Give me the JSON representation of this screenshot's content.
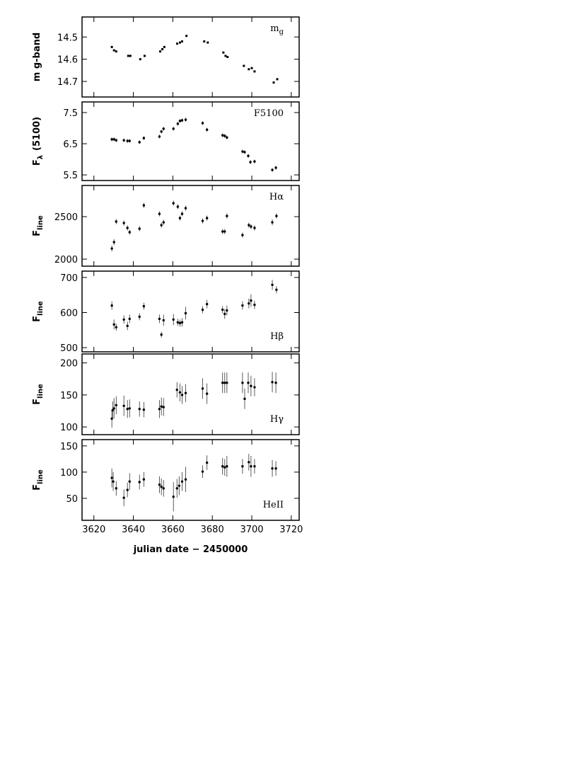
{
  "chart_data": [
    {
      "type": "scatter",
      "marker": "square",
      "ylabel": "m  g-band",
      "label": "m",
      "label_sub": "g",
      "label_loc": "upper right",
      "xlim": [
        3614,
        3724
      ],
      "xticks": [
        3620,
        3640,
        3660,
        3680,
        3700,
        3720
      ],
      "ylim": [
        14.77,
        14.41
      ],
      "yticks": [
        14.5,
        14.6,
        14.7
      ],
      "x": [
        3629.1,
        3630.2,
        3631.3,
        3637.4,
        3638.5,
        3643.5,
        3645.7,
        3653.6,
        3654.7,
        3655.7,
        3662.2,
        3663.6,
        3664.7,
        3666.9,
        3675.9,
        3677.7,
        3685.6,
        3686.7,
        3687.7,
        3696.0,
        3698.5,
        3700.0,
        3701.4,
        3711.1,
        3712.9
      ],
      "values": [
        14.545,
        14.56,
        14.565,
        14.585,
        14.585,
        14.6,
        14.585,
        14.565,
        14.555,
        14.545,
        14.53,
        14.525,
        14.52,
        14.495,
        14.52,
        14.525,
        14.57,
        14.585,
        14.59,
        14.63,
        14.645,
        14.64,
        14.655,
        14.705,
        14.69
      ]
    },
    {
      "type": "errorbar",
      "ylabel": "F",
      "ylabel_sub": "λ",
      "ylabel_rest": "(5100)",
      "label": "F5100",
      "label_loc": "upper right",
      "xlim": [
        3614,
        3724
      ],
      "xticks": [
        3620,
        3640,
        3660,
        3680,
        3700,
        3720
      ],
      "ylim": [
        5.32,
        7.84
      ],
      "yticks": [
        5.5,
        6.5,
        7.5
      ],
      "x": [
        3629.1,
        3630.2,
        3631.3,
        3635.2,
        3637.0,
        3638.1,
        3643.1,
        3645.3,
        3653.2,
        3654.2,
        3655.3,
        3660.3,
        3662.5,
        3663.6,
        3664.7,
        3666.5,
        3675.1,
        3677.3,
        3685.2,
        3686.3,
        3687.4,
        3695.3,
        3696.4,
        3698.2,
        3699.3,
        3701.4,
        3710.4,
        3712.2
      ],
      "values": [
        6.64,
        6.64,
        6.61,
        6.61,
        6.59,
        6.59,
        6.55,
        6.68,
        6.73,
        6.89,
        6.98,
        6.98,
        7.14,
        7.23,
        7.25,
        7.27,
        7.16,
        6.95,
        6.77,
        6.75,
        6.7,
        6.25,
        6.23,
        6.11,
        5.91,
        5.93,
        5.66,
        5.73
      ],
      "error": [
        0.06,
        0.06,
        0.06,
        0.06,
        0.06,
        0.06,
        0.06,
        0.06,
        0.06,
        0.06,
        0.06,
        0.06,
        0.06,
        0.06,
        0.06,
        0.06,
        0.06,
        0.06,
        0.06,
        0.06,
        0.06,
        0.06,
        0.06,
        0.06,
        0.06,
        0.06,
        0.06,
        0.06
      ]
    },
    {
      "type": "errorbar",
      "ylabel": "F",
      "ylabel_sub": "line",
      "label": "Hα",
      "label_loc": "upper right",
      "xlim": [
        3614,
        3724
      ],
      "xticks": [
        3620,
        3640,
        3660,
        3680,
        3700,
        3720
      ],
      "ylim": [
        1917,
        2867
      ],
      "yticks": [
        2000,
        2500
      ],
      "x": [
        3629.1,
        3630.2,
        3631.3,
        3635.2,
        3637.0,
        3638.1,
        3643.1,
        3645.3,
        3653.2,
        3654.2,
        3655.3,
        3660.3,
        3662.5,
        3663.6,
        3664.7,
        3666.5,
        3675.1,
        3677.3,
        3685.2,
        3686.3,
        3687.4,
        3695.3,
        3698.5,
        3699.6,
        3701.4,
        3710.4,
        3712.5
      ],
      "values": [
        2125,
        2200,
        2442,
        2425,
        2367,
        2317,
        2358,
        2633,
        2533,
        2400,
        2433,
        2658,
        2617,
        2483,
        2533,
        2600,
        2450,
        2483,
        2325,
        2325,
        2508,
        2283,
        2400,
        2383,
        2367,
        2433,
        2508
      ],
      "error": [
        35,
        35,
        30,
        30,
        30,
        30,
        30,
        30,
        30,
        30,
        30,
        30,
        30,
        30,
        30,
        30,
        30,
        30,
        30,
        30,
        30,
        30,
        30,
        30,
        30,
        35,
        30
      ]
    },
    {
      "type": "errorbar",
      "ylabel": "F",
      "ylabel_sub": "line",
      "label": "Hβ",
      "label_loc": "lower right",
      "xlim": [
        3614,
        3724
      ],
      "xticks": [
        3620,
        3640,
        3660,
        3680,
        3700,
        3720
      ],
      "ylim": [
        488,
        718
      ],
      "yticks": [
        500,
        600,
        700
      ],
      "x": [
        3629.1,
        3630.2,
        3631.3,
        3635.2,
        3637.0,
        3638.1,
        3643.1,
        3645.3,
        3653.2,
        3654.2,
        3655.3,
        3660.3,
        3662.5,
        3663.6,
        3664.7,
        3666.5,
        3675.1,
        3677.3,
        3685.2,
        3686.3,
        3687.4,
        3695.3,
        3698.5,
        3699.6,
        3701.4,
        3710.4,
        3712.5
      ],
      "values": [
        620,
        566,
        558,
        580,
        562,
        582,
        588,
        618,
        582,
        537,
        578,
        580,
        572,
        570,
        572,
        598,
        608,
        624,
        608,
        596,
        606,
        620,
        626,
        634,
        622,
        679,
        665
      ],
      "error": [
        12,
        14,
        10,
        12,
        12,
        12,
        10,
        10,
        12,
        8,
        16,
        16,
        10,
        10,
        12,
        18,
        10,
        12,
        10,
        14,
        14,
        12,
        14,
        18,
        12,
        14,
        10
      ]
    },
    {
      "type": "errorbar",
      "ylabel": "F",
      "ylabel_sub": "line",
      "label": "Hγ",
      "label_loc": "lower right",
      "xlim": [
        3614,
        3724
      ],
      "xticks": [
        3620,
        3640,
        3660,
        3680,
        3700,
        3720
      ],
      "ylim": [
        88,
        214
      ],
      "yticks": [
        100,
        150,
        200
      ],
      "x": [
        3629.1,
        3629.5,
        3630.2,
        3631.3,
        3635.2,
        3637.0,
        3638.1,
        3643.1,
        3645.3,
        3653.2,
        3654.2,
        3655.3,
        3662.1,
        3663.6,
        3664.7,
        3666.5,
        3675.1,
        3677.3,
        3685.2,
        3686.3,
        3687.4,
        3695.3,
        3696.4,
        3698.2,
        3699.6,
        3701.4,
        3710.4,
        3712.2
      ],
      "values": [
        113,
        126,
        129,
        134,
        133,
        128,
        129,
        128,
        127,
        128,
        132,
        131,
        158,
        154,
        150,
        153,
        160,
        152,
        169,
        169,
        169,
        169,
        144,
        169,
        164,
        162,
        170,
        169
      ],
      "error": [
        14,
        14,
        16,
        14,
        16,
        14,
        14,
        12,
        12,
        14,
        14,
        14,
        12,
        14,
        14,
        14,
        16,
        16,
        16,
        16,
        16,
        16,
        16,
        16,
        16,
        14,
        16,
        16
      ]
    },
    {
      "type": "errorbar",
      "ylabel": "F",
      "ylabel_sub": "line",
      "label": "HeII",
      "label_loc": "lower right",
      "xlabel": "julian date − 2450000",
      "xlim": [
        3614,
        3724
      ],
      "xticks": [
        3620,
        3640,
        3660,
        3680,
        3700,
        3720
      ],
      "ylim": [
        8,
        162
      ],
      "yticks": [
        50,
        100,
        150
      ],
      "x": [
        3629.1,
        3629.8,
        3631.3,
        3635.2,
        3637.0,
        3638.1,
        3643.1,
        3645.3,
        3653.2,
        3654.2,
        3655.3,
        3660.3,
        3662.1,
        3663.2,
        3664.7,
        3666.5,
        3675.1,
        3677.3,
        3685.2,
        3686.3,
        3687.4,
        3695.3,
        3698.5,
        3699.6,
        3701.4,
        3710.4,
        3712.2
      ],
      "values": [
        89,
        82,
        69,
        51,
        66,
        82,
        81,
        86,
        76,
        72,
        69,
        53,
        69,
        74,
        82,
        86,
        101,
        118,
        111,
        109,
        111,
        111,
        119,
        111,
        111,
        107,
        107
      ],
      "error": [
        18,
        18,
        14,
        16,
        14,
        16,
        14,
        14,
        16,
        16,
        16,
        28,
        18,
        18,
        18,
        24,
        12,
        14,
        16,
        16,
        20,
        14,
        16,
        20,
        14,
        16,
        14
      ]
    }
  ]
}
